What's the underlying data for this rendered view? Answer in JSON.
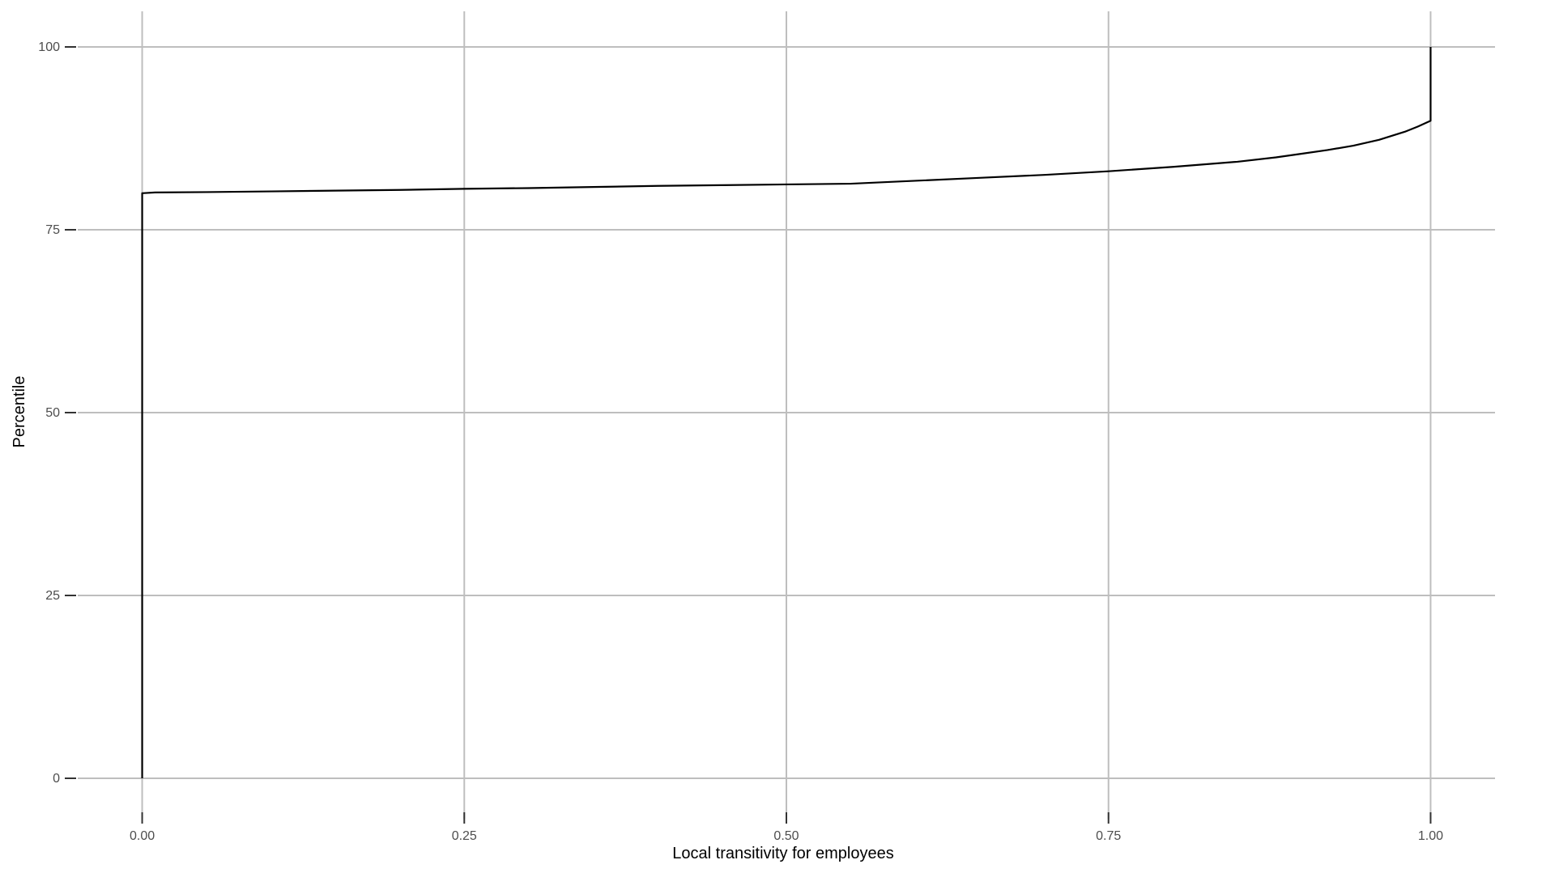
{
  "chart_data": {
    "type": "line",
    "title": "",
    "xlabel": "Local transitivity for employees",
    "ylabel": "Percentile",
    "xlim": [
      -0.05,
      1.05
    ],
    "ylim": [
      -10,
      100
    ],
    "x_ticks": [
      0,
      0.25,
      0.5,
      0.75,
      1.0
    ],
    "x_tick_labels": [
      "0.00",
      "0.25",
      "0.50",
      "0.75",
      "1.00"
    ],
    "y_ticks": [
      0,
      25,
      50,
      75,
      100
    ],
    "y_tick_labels": [
      "0",
      "25",
      "50",
      "75",
      "100"
    ],
    "grid": true,
    "legend": "none",
    "colors": {
      "line": "#000000",
      "grid": "#bebebe",
      "tick": "#333333",
      "background": "#ffffff"
    },
    "series": [
      {
        "x": [
          0,
          0,
          0.01,
          0.05,
          0.1,
          0.15,
          0.2,
          0.25,
          0.3,
          0.35,
          0.4,
          0.45,
          0.5,
          0.55,
          0.6,
          0.65,
          0.7,
          0.75,
          0.8,
          0.85,
          0.88,
          0.9,
          0.92,
          0.94,
          0.96,
          0.98,
          0.99,
          1.0,
          1.0
        ],
        "y": [
          0,
          80,
          80.1,
          80.15,
          80.25,
          80.35,
          80.45,
          80.6,
          80.7,
          80.85,
          81.0,
          81.1,
          81.2,
          81.3,
          81.7,
          82.1,
          82.5,
          83.0,
          83.6,
          84.3,
          84.9,
          85.4,
          85.9,
          86.5,
          87.3,
          88.4,
          89.1,
          89.9,
          100
        ]
      }
    ]
  }
}
